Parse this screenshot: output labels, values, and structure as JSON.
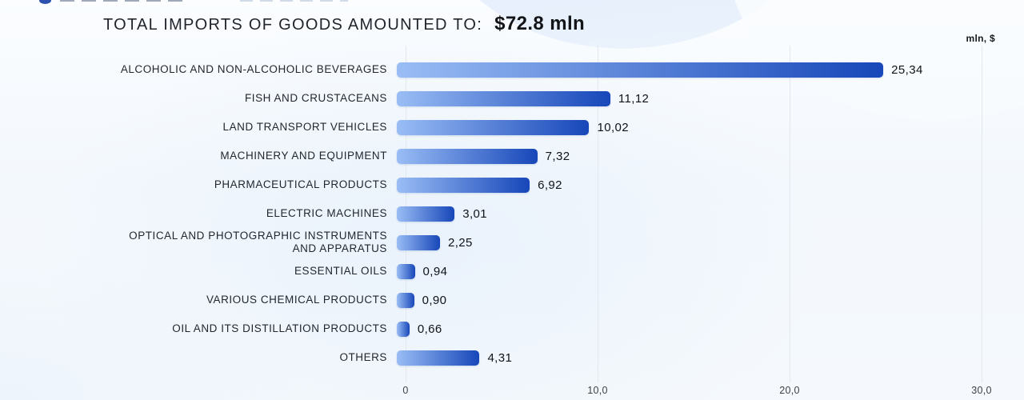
{
  "header": {
    "title_label": "TOTAL IMPORTS OF GOODS AMOUNTED TO:",
    "title_value": "$72.8 mln",
    "units_label": "mln, $"
  },
  "colors": {
    "bar_gradient_start": "#9abdf5",
    "bar_gradient_end": "#1747b9",
    "gridline": "#e3e8f0",
    "title_text": "#21252c",
    "background_tint": "#eaf2fc"
  },
  "chart_data": {
    "type": "bar",
    "orientation": "horizontal",
    "title": "TOTAL IMPORTS OF GOODS AMOUNTED TO: $72.8 mln",
    "total_value_label": "$72.8 mln",
    "unit": "mln, $",
    "grid": true,
    "legend": false,
    "xlim": [
      0,
      30
    ],
    "x_ticks": [
      "0",
      "10,0",
      "20,0",
      "30,0"
    ],
    "x_tick_values": [
      0,
      10,
      20,
      30
    ],
    "categories": [
      "ALCOHOLIC AND NON-ALCOHOLIC BEVERAGES",
      "FISH AND CRUSTACEANS",
      "LAND TRANSPORT VEHICLES",
      "MACHINERY AND EQUIPMENT",
      "PHARMACEUTICAL PRODUCTS",
      "ELECTRIC MACHINES",
      "OPTICAL AND PHOTOGRAPHIC INSTRUMENTS AND APPARATUS",
      "ESSENTIAL OILS",
      "VARIOUS CHEMICAL PRODUCTS",
      "OIL AND ITS DISTILLATION PRODUCTS",
      "OTHERS"
    ],
    "values": [
      25.34,
      11.12,
      10.02,
      7.32,
      6.92,
      3.01,
      2.25,
      0.94,
      0.9,
      0.66,
      4.31
    ],
    "value_labels": [
      "25,34",
      "11,12",
      "10,02",
      "7,32",
      "6,92",
      "3,01",
      "2,25",
      "0,94",
      "0,90",
      "0,66",
      "4,31"
    ]
  }
}
